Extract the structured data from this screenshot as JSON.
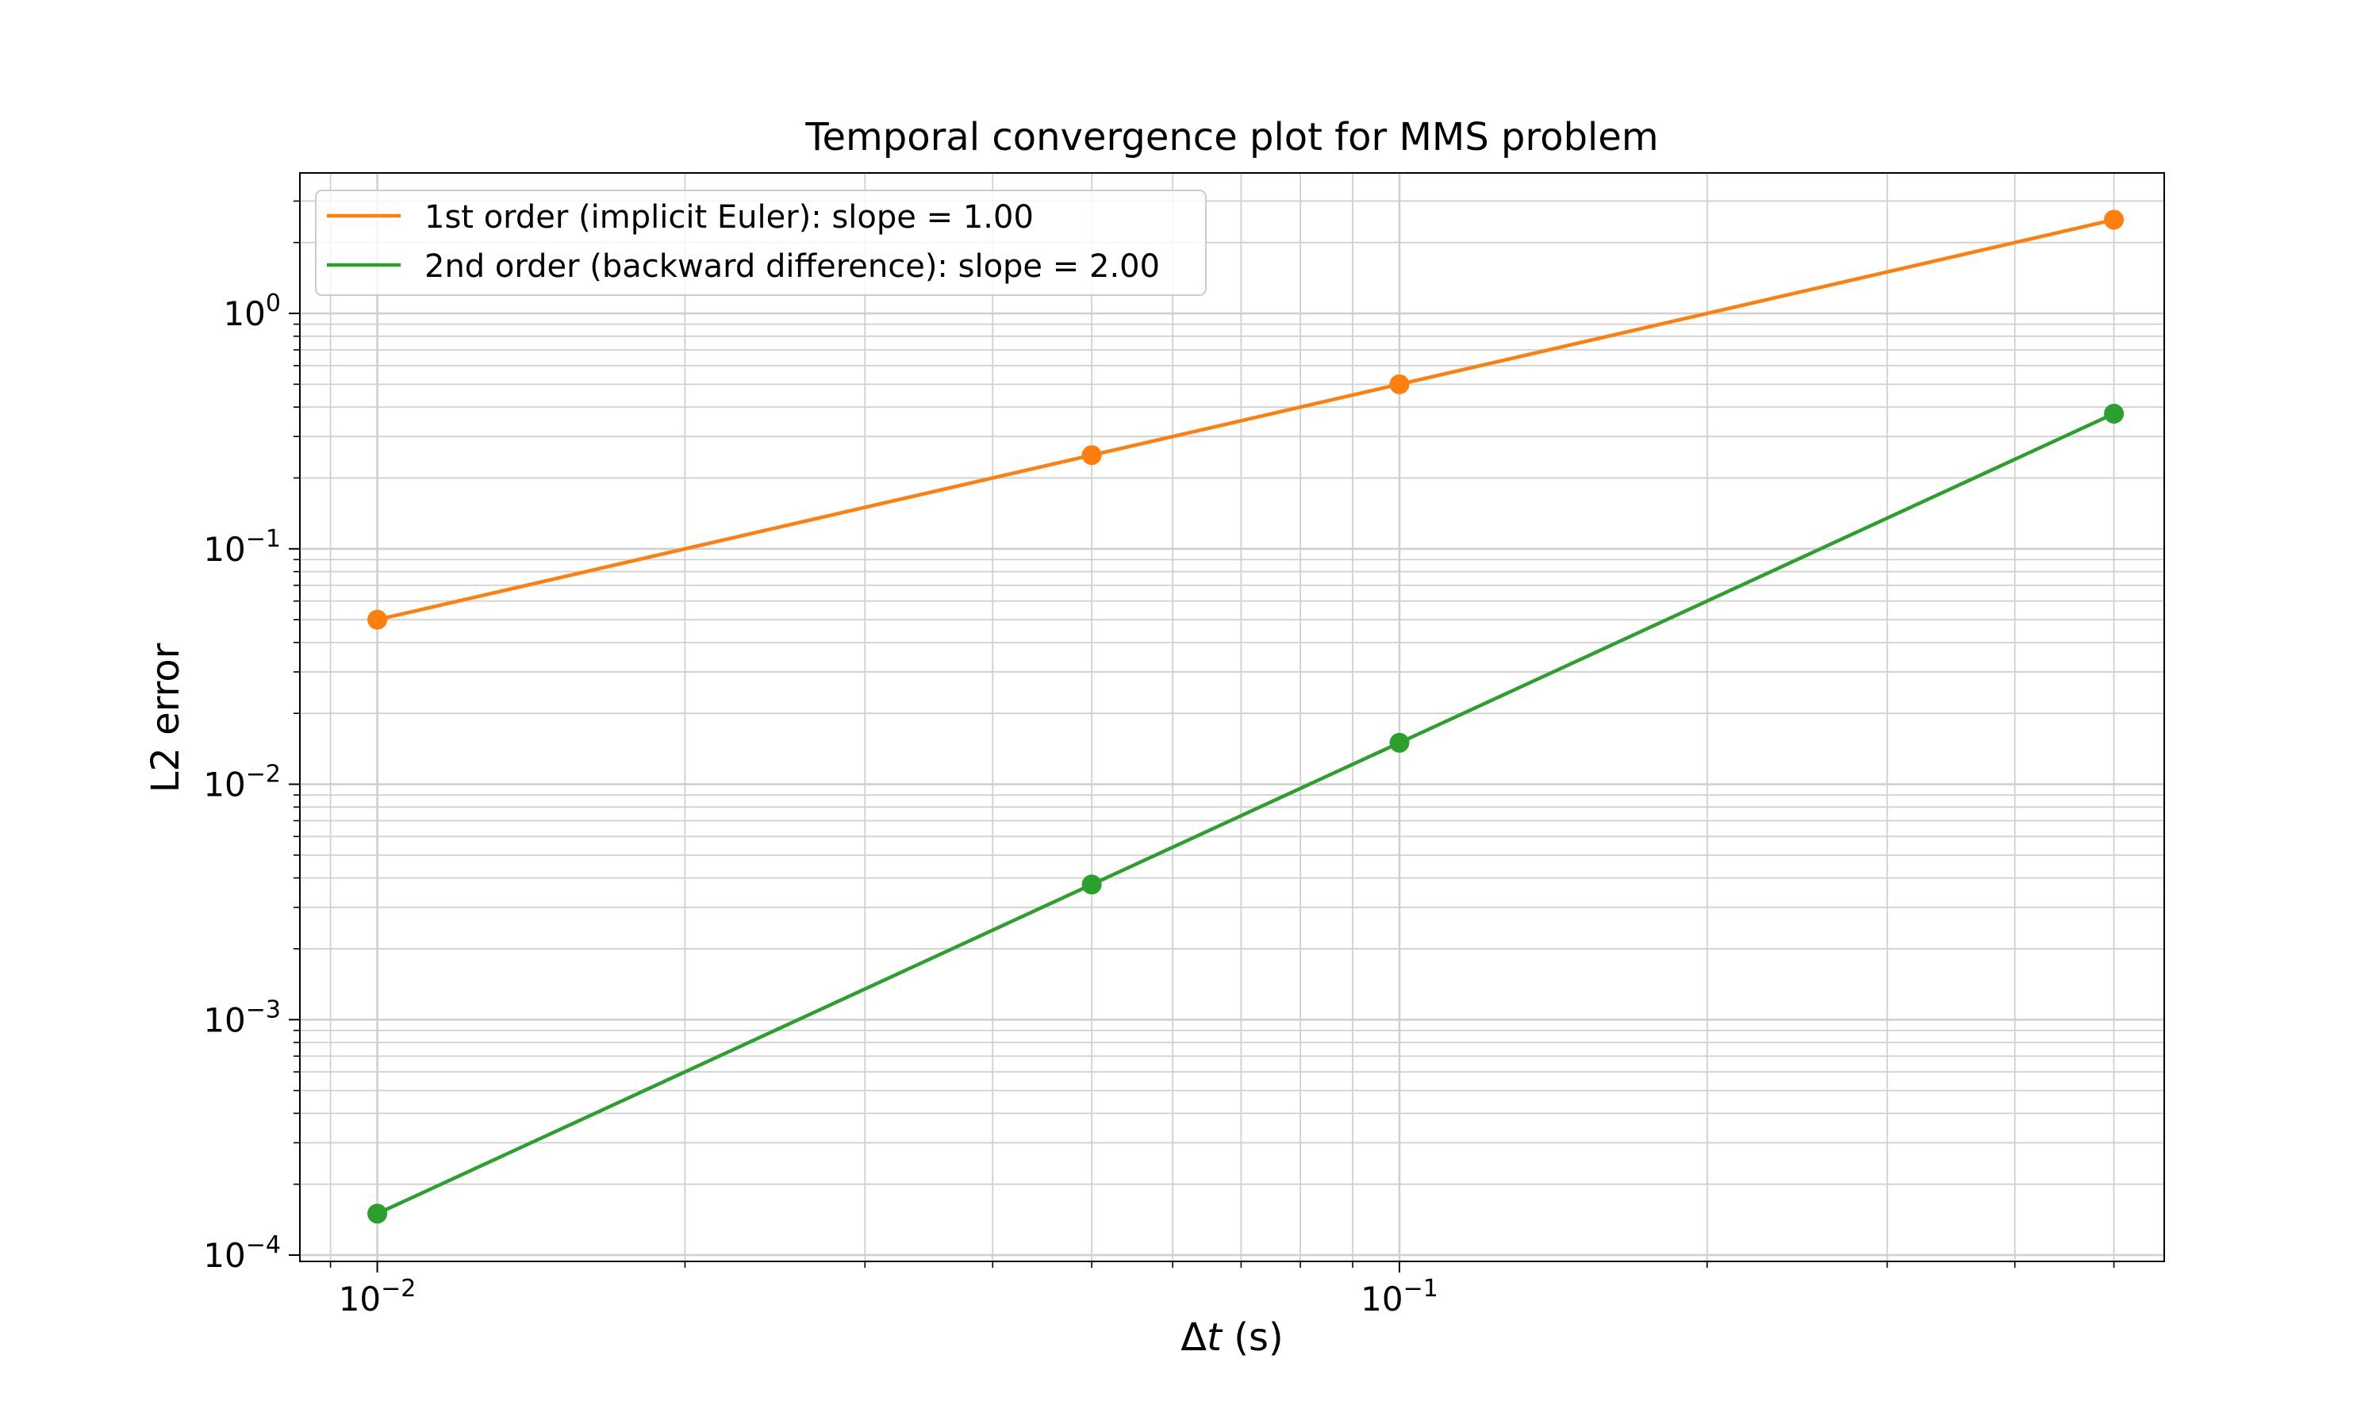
{
  "chart_data": {
    "type": "line",
    "title": "Temporal convergence plot for MMS problem",
    "xlabel_prefix": "Δ",
    "xlabel_var": "t",
    "xlabel_suffix": " (s)",
    "ylabel": "L2 error",
    "xscale": "log",
    "yscale": "log",
    "xlim": [
      0.0084,
      0.56
    ],
    "ylim": [
      9.4e-05,
      3.95
    ],
    "grid": "major and minor",
    "legend_position": "top-left",
    "xticks": [
      {
        "value": 0.01,
        "base": "10",
        "exp": "−2"
      },
      {
        "value": 0.1,
        "base": "10",
        "exp": "−1"
      }
    ],
    "yticks": [
      {
        "value": 0.0001,
        "base": "10",
        "exp": "−4"
      },
      {
        "value": 0.001,
        "base": "10",
        "exp": "−3"
      },
      {
        "value": 0.01,
        "base": "10",
        "exp": "−2"
      },
      {
        "value": 0.1,
        "base": "10",
        "exp": "−1"
      },
      {
        "value": 1,
        "base": "10",
        "exp": "0"
      }
    ],
    "series": [
      {
        "name": "1st order (implicit Euler): slope = 1.00",
        "color": "#ff7f0e",
        "x": [
          0.01,
          0.05,
          0.1,
          0.5
        ],
        "y": [
          0.05,
          0.25,
          0.5,
          2.5
        ]
      },
      {
        "name": "2nd order (backward difference): slope = 2.00",
        "color": "#2ca02c",
        "x": [
          0.01,
          0.05,
          0.1,
          0.5
        ],
        "y": [
          0.00015,
          0.00375,
          0.015,
          0.375
        ]
      }
    ]
  }
}
